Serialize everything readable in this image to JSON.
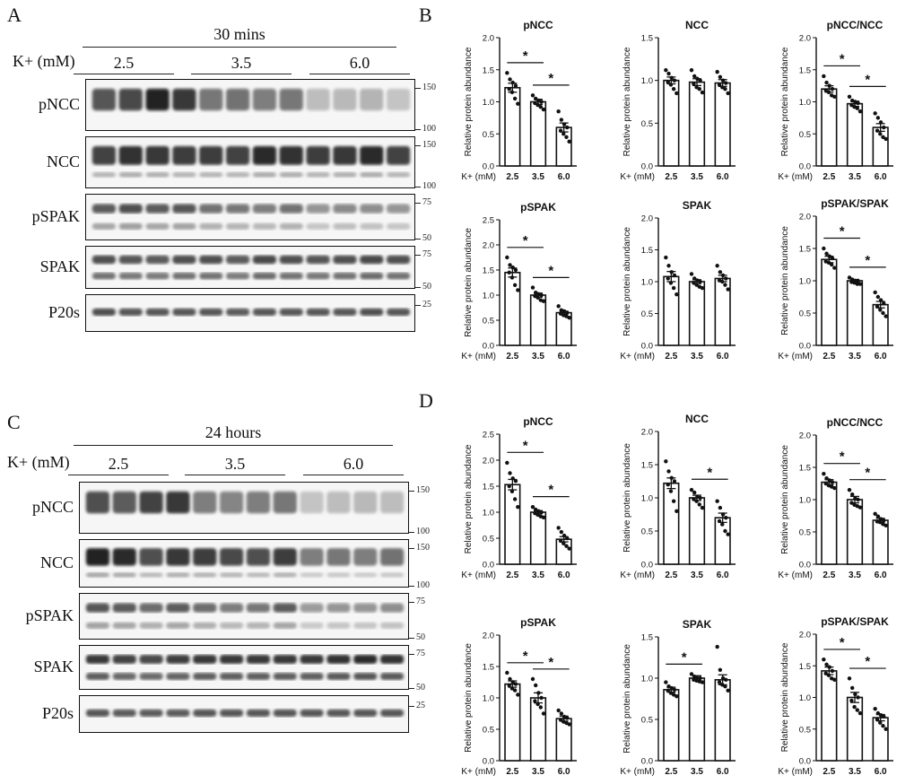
{
  "panels": {
    "A": {
      "letter": "A",
      "time_title": "30 mins",
      "k_label": "K+ (mM)",
      "groups": [
        "2.5",
        "3.5",
        "6.0"
      ],
      "blots": [
        {
          "label": "pNCC",
          "markers": [
            "150",
            "100"
          ]
        },
        {
          "label": "NCC",
          "markers": [
            "150",
            "100"
          ]
        },
        {
          "label": "pSPAK",
          "markers": [
            "75",
            "50"
          ]
        },
        {
          "label": "SPAK",
          "markers": [
            "75",
            "50"
          ]
        },
        {
          "label": "P20s",
          "markers": [
            "25"
          ]
        }
      ]
    },
    "B": {
      "letter": "B"
    },
    "C": {
      "letter": "C",
      "time_title": "24 hours",
      "k_label": "K+ (mM)",
      "groups": [
        "2.5",
        "3.5",
        "6.0"
      ],
      "blots": [
        {
          "label": "pNCC",
          "markers": [
            "150",
            "100"
          ]
        },
        {
          "label": "NCC",
          "markers": [
            "150",
            "100"
          ]
        },
        {
          "label": "pSPAK",
          "markers": [
            "75",
            "50"
          ]
        },
        {
          "label": "SPAK",
          "markers": [
            "75",
            "50"
          ]
        },
        {
          "label": "P20s",
          "markers": [
            "25"
          ]
        }
      ]
    },
    "D": {
      "letter": "D"
    }
  },
  "blot_intensity": {
    "A": {
      "pNCC": [
        0.72,
        0.78,
        0.95,
        0.85,
        0.58,
        0.6,
        0.55,
        0.58,
        0.28,
        0.3,
        0.32,
        0.25
      ],
      "NCC": [
        0.8,
        0.88,
        0.85,
        0.82,
        0.82,
        0.8,
        0.9,
        0.88,
        0.82,
        0.85,
        0.9,
        0.8
      ],
      "pSPAK": [
        0.7,
        0.75,
        0.7,
        0.72,
        0.6,
        0.58,
        0.55,
        0.6,
        0.45,
        0.5,
        0.48,
        0.45
      ],
      "SPAK": [
        0.75,
        0.72,
        0.7,
        0.75,
        0.75,
        0.7,
        0.78,
        0.75,
        0.72,
        0.75,
        0.78,
        0.75
      ],
      "P20s": [
        0.75,
        0.72,
        0.72,
        0.72,
        0.72,
        0.7,
        0.72,
        0.72,
        0.72,
        0.72,
        0.75,
        0.72
      ]
    },
    "C": {
      "pNCC": [
        0.75,
        0.7,
        0.8,
        0.85,
        0.55,
        0.52,
        0.55,
        0.58,
        0.25,
        0.28,
        0.3,
        0.28
      ],
      "NCC": [
        0.95,
        0.9,
        0.75,
        0.85,
        0.82,
        0.78,
        0.75,
        0.82,
        0.55,
        0.58,
        0.55,
        0.6
      ],
      "pSPAK": [
        0.72,
        0.7,
        0.62,
        0.7,
        0.62,
        0.55,
        0.58,
        0.7,
        0.42,
        0.45,
        0.45,
        0.48
      ],
      "SPAK": [
        0.85,
        0.8,
        0.78,
        0.82,
        0.85,
        0.85,
        0.85,
        0.85,
        0.85,
        0.88,
        0.9,
        0.88
      ],
      "P20s": [
        0.72,
        0.7,
        0.7,
        0.7,
        0.72,
        0.72,
        0.72,
        0.72,
        0.72,
        0.72,
        0.72,
        0.72
      ]
    }
  },
  "chart_data": [
    {
      "id": "B-pNCC",
      "type": "bar",
      "title": "pNCC",
      "ylabel": "Relative protein abundance",
      "xlabel": "K+ (mM)",
      "categories": [
        "2.5",
        "3.5",
        "6.0"
      ],
      "values": [
        1.22,
        1.0,
        0.6
      ],
      "sem": [
        0.07,
        0.04,
        0.07
      ],
      "ylim": [
        0,
        2.0
      ],
      "yticks": [
        "0.0",
        "0.5",
        "1.0",
        "1.5",
        "2.0"
      ],
      "points": [
        [
          1.45,
          1.35,
          1.3,
          1.25,
          1.2,
          1.15,
          1.05,
          0.97
        ],
        [
          1.1,
          1.05,
          1.02,
          1.0,
          0.98,
          0.95,
          0.92,
          0.88
        ],
        [
          0.85,
          0.72,
          0.65,
          0.6,
          0.55,
          0.5,
          0.45,
          0.38
        ]
      ],
      "significance": [
        [
          0,
          1
        ],
        [
          1,
          2
        ]
      ],
      "sig_label": "*"
    },
    {
      "id": "B-NCC",
      "type": "bar",
      "title": "NCC",
      "ylabel": "Relative protein abundance",
      "xlabel": "K+ (mM)",
      "categories": [
        "2.5",
        "3.5",
        "6.0"
      ],
      "values": [
        1.0,
        0.98,
        0.97
      ],
      "sem": [
        0.04,
        0.04,
        0.04
      ],
      "ylim": [
        0,
        1.5
      ],
      "yticks": [
        "0.0",
        "0.5",
        "1.0",
        "1.5"
      ],
      "points": [
        [
          1.12,
          1.08,
          1.03,
          1.0,
          0.98,
          0.95,
          0.9,
          0.85
        ],
        [
          1.12,
          1.05,
          1.02,
          1.0,
          0.96,
          0.92,
          0.9,
          0.86
        ],
        [
          1.1,
          1.04,
          1.0,
          0.97,
          0.95,
          0.92,
          0.9,
          0.85
        ]
      ],
      "significance": [],
      "sig_label": "*"
    },
    {
      "id": "B-pNCC/NCC",
      "type": "bar",
      "title": "pNCC/NCC",
      "ylabel": "Relative protein abundance",
      "xlabel": "K+ (mM)",
      "categories": [
        "2.5",
        "3.5",
        "6.0"
      ],
      "values": [
        1.2,
        0.97,
        0.6
      ],
      "sem": [
        0.05,
        0.04,
        0.06
      ],
      "ylim": [
        0,
        2.0
      ],
      "yticks": [
        "0.0",
        "0.5",
        "1.0",
        "1.5",
        "2.0"
      ],
      "points": [
        [
          1.4,
          1.3,
          1.25,
          1.2,
          1.18,
          1.15,
          1.1,
          1.08
        ],
        [
          1.08,
          1.02,
          1.0,
          0.98,
          0.95,
          0.92,
          0.9,
          0.85
        ],
        [
          0.82,
          0.75,
          0.68,
          0.6,
          0.55,
          0.5,
          0.45,
          0.42
        ]
      ],
      "significance": [
        [
          0,
          1
        ],
        [
          1,
          2
        ]
      ],
      "sig_label": "*"
    },
    {
      "id": "B-pSPAK",
      "type": "bar",
      "title": "pSPAK",
      "ylabel": "Relative protein abundance",
      "xlabel": "K+ (mM)",
      "categories": [
        "2.5",
        "3.5",
        "6.0"
      ],
      "values": [
        1.45,
        1.0,
        0.65
      ],
      "sem": [
        0.09,
        0.04,
        0.03
      ],
      "ylim": [
        0,
        2.5
      ],
      "yticks": [
        "0.0",
        "0.5",
        "1.0",
        "1.5",
        "2.0",
        "2.5"
      ],
      "points": [
        [
          1.75,
          1.6,
          1.55,
          1.5,
          1.45,
          1.35,
          1.2,
          1.1
        ],
        [
          1.15,
          1.05,
          1.02,
          1.0,
          0.98,
          0.95,
          0.9,
          0.88
        ],
        [
          0.78,
          0.7,
          0.68,
          0.65,
          0.63,
          0.6,
          0.58,
          0.55
        ]
      ],
      "significance": [
        [
          0,
          1
        ],
        [
          1,
          2
        ]
      ],
      "sig_label": "*"
    },
    {
      "id": "B-SPAK",
      "type": "bar",
      "title": "SPAK",
      "ylabel": "Relative protein abundance",
      "xlabel": "K+ (mM)",
      "categories": [
        "2.5",
        "3.5",
        "6.0"
      ],
      "values": [
        1.08,
        1.0,
        1.05
      ],
      "sem": [
        0.08,
        0.03,
        0.05
      ],
      "ylim": [
        0,
        2.0
      ],
      "yticks": [
        "0.0",
        "0.5",
        "1.0",
        "1.5",
        "2.0"
      ],
      "points": [
        [
          1.38,
          1.25,
          1.15,
          1.1,
          1.05,
          0.98,
          0.9,
          0.8
        ],
        [
          1.12,
          1.05,
          1.02,
          1.0,
          0.98,
          0.95,
          0.92,
          0.9
        ],
        [
          1.25,
          1.15,
          1.1,
          1.05,
          1.02,
          1.0,
          0.95,
          0.88
        ]
      ],
      "significance": [],
      "sig_label": "*"
    },
    {
      "id": "B-pSPAK/SPAK",
      "type": "bar",
      "title": "pSPAK/SPAK",
      "ylabel": "Relative protein abundance",
      "xlabel": "K+ (mM)",
      "categories": [
        "2.5",
        "3.5",
        "6.0"
      ],
      "values": [
        1.33,
        1.0,
        0.63
      ],
      "sem": [
        0.05,
        0.02,
        0.05
      ],
      "ylim": [
        0,
        2.0
      ],
      "yticks": [
        "0.0",
        "0.5",
        "1.0",
        "1.5",
        "2.0"
      ],
      "points": [
        [
          1.5,
          1.42,
          1.38,
          1.35,
          1.3,
          1.28,
          1.25,
          1.2
        ],
        [
          1.05,
          1.02,
          1.0,
          1.0,
          0.98,
          0.97,
          0.95,
          0.95
        ],
        [
          0.82,
          0.75,
          0.7,
          0.65,
          0.6,
          0.55,
          0.5,
          0.45
        ]
      ],
      "significance": [
        [
          0,
          1
        ],
        [
          1,
          2
        ]
      ],
      "sig_label": "*"
    },
    {
      "id": "D-pNCC",
      "type": "bar",
      "title": "pNCC",
      "ylabel": "Relative protein abundance",
      "xlabel": "K+ (mM)",
      "categories": [
        "2.5",
        "3.5",
        "6.0"
      ],
      "values": [
        1.53,
        1.0,
        0.48
      ],
      "sem": [
        0.1,
        0.03,
        0.05
      ],
      "ylim": [
        0,
        2.5
      ],
      "yticks": [
        "0.0",
        "0.5",
        "1.0",
        "1.5",
        "2.0",
        "2.5"
      ],
      "points": [
        [
          1.95,
          1.75,
          1.65,
          1.6,
          1.5,
          1.4,
          1.25,
          1.1
        ],
        [
          1.1,
          1.05,
          1.02,
          1.0,
          0.98,
          0.95,
          0.92,
          0.9
        ],
        [
          0.7,
          0.62,
          0.55,
          0.5,
          0.45,
          0.4,
          0.35,
          0.3
        ]
      ],
      "significance": [
        [
          0,
          1
        ],
        [
          1,
          2
        ]
      ],
      "sig_label": "*"
    },
    {
      "id": "D-NCC",
      "type": "bar",
      "title": "NCC",
      "ylabel": "Relative protein abundance",
      "xlabel": "K+ (mM)",
      "categories": [
        "2.5",
        "3.5",
        "6.0"
      ],
      "values": [
        1.22,
        1.0,
        0.7
      ],
      "sem": [
        0.08,
        0.04,
        0.07
      ],
      "ylim": [
        0,
        2.0
      ],
      "yticks": [
        "0.0",
        "0.5",
        "1.0",
        "1.5",
        "2.0"
      ],
      "points": [
        [
          1.55,
          1.4,
          1.3,
          1.25,
          1.2,
          1.1,
          0.95,
          0.8
        ],
        [
          1.12,
          1.08,
          1.02,
          1.0,
          0.98,
          0.95,
          0.9,
          0.85
        ],
        [
          0.95,
          0.85,
          0.75,
          0.7,
          0.65,
          0.6,
          0.5,
          0.45
        ]
      ],
      "significance": [
        [
          1,
          2
        ]
      ],
      "sig_label": "*"
    },
    {
      "id": "D-pNCC/NCC",
      "type": "bar",
      "title": "pNCC/NCC",
      "ylabel": "Relative protein abundance",
      "xlabel": "K+ (mM)",
      "categories": [
        "2.5",
        "3.5",
        "6.0"
      ],
      "values": [
        1.27,
        1.0,
        0.68
      ],
      "sem": [
        0.04,
        0.05,
        0.03
      ],
      "ylim": [
        0,
        2.0
      ],
      "yticks": [
        "0.0",
        "0.5",
        "1.0",
        "1.5",
        "2.0"
      ],
      "points": [
        [
          1.4,
          1.33,
          1.3,
          1.27,
          1.25,
          1.22,
          1.2,
          1.18
        ],
        [
          1.15,
          1.08,
          1.02,
          1.0,
          0.95,
          0.92,
          0.9,
          0.88
        ],
        [
          0.78,
          0.74,
          0.7,
          0.68,
          0.66,
          0.65,
          0.62,
          0.6
        ]
      ],
      "significance": [
        [
          0,
          1
        ],
        [
          1,
          2
        ]
      ],
      "sig_label": "*"
    },
    {
      "id": "D-pSPAK",
      "type": "bar",
      "title": "pSPAK",
      "ylabel": "Relative protein abundance",
      "xlabel": "K+ (mM)",
      "categories": [
        "2.5",
        "3.5",
        "6.0"
      ],
      "values": [
        1.22,
        1.0,
        0.67
      ],
      "sem": [
        0.05,
        0.08,
        0.04
      ],
      "ylim": [
        0,
        2.0
      ],
      "yticks": [
        "0.0",
        "0.5",
        "1.0",
        "1.5",
        "2.0"
      ],
      "points": [
        [
          1.4,
          1.3,
          1.25,
          1.22,
          1.2,
          1.15,
          1.12,
          1.05
        ],
        [
          1.3,
          1.2,
          1.08,
          1.0,
          0.95,
          0.9,
          0.85,
          0.75
        ],
        [
          0.8,
          0.75,
          0.7,
          0.68,
          0.65,
          0.62,
          0.6,
          0.58
        ]
      ],
      "significance": [
        [
          0,
          1
        ],
        [
          1,
          2
        ]
      ],
      "sig_label": "*"
    },
    {
      "id": "D-SPAK",
      "type": "bar",
      "title": "SPAK",
      "ylabel": "Relative protein abundance",
      "xlabel": "K+ (mM)",
      "categories": [
        "2.5",
        "3.5",
        "6.0"
      ],
      "values": [
        0.86,
        1.0,
        0.98
      ],
      "sem": [
        0.03,
        0.03,
        0.06
      ],
      "ylim": [
        0,
        1.5
      ],
      "yticks": [
        "0.0",
        "0.5",
        "1.0",
        "1.5"
      ],
      "points": [
        [
          0.95,
          0.9,
          0.88,
          0.86,
          0.85,
          0.82,
          0.8,
          0.78
        ],
        [
          1.05,
          1.02,
          1.0,
          1.0,
          0.98,
          0.97,
          0.96,
          0.95
        ],
        [
          1.38,
          1.1,
          1.0,
          0.98,
          0.95,
          0.92,
          0.9,
          0.85
        ]
      ],
      "significance": [
        [
          0,
          1
        ]
      ],
      "sig_label": "*"
    },
    {
      "id": "D-pSPAK/SPAK",
      "type": "bar",
      "title": "pSPAK/SPAK",
      "ylabel": "Relative protein abundance",
      "xlabel": "K+ (mM)",
      "categories": [
        "2.5",
        "3.5",
        "6.0"
      ],
      "values": [
        1.42,
        1.0,
        0.68
      ],
      "sem": [
        0.06,
        0.08,
        0.05
      ],
      "ylim": [
        0,
        2.0
      ],
      "yticks": [
        "0.0",
        "0.5",
        "1.0",
        "1.5",
        "2.0"
      ],
      "points": [
        [
          1.6,
          1.52,
          1.48,
          1.42,
          1.38,
          1.35,
          1.3,
          1.28
        ],
        [
          1.3,
          1.15,
          1.05,
          1.0,
          0.95,
          0.85,
          0.8,
          0.75
        ],
        [
          0.82,
          0.75,
          0.72,
          0.7,
          0.65,
          0.6,
          0.55,
          0.5
        ]
      ],
      "significance": [
        [
          0,
          1
        ],
        [
          1,
          2
        ]
      ],
      "sig_label": "*"
    }
  ]
}
